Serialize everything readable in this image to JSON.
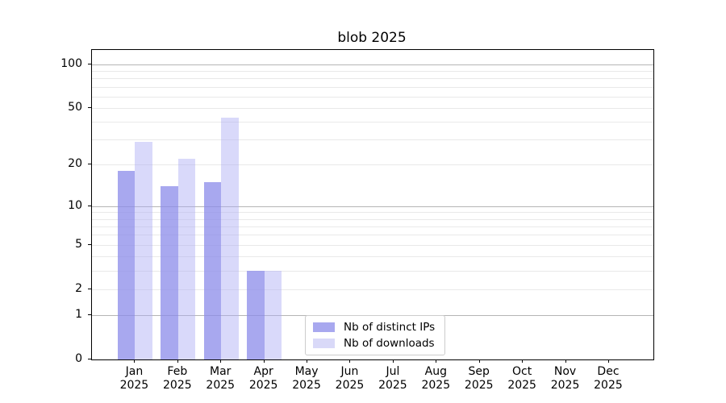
{
  "title": "blob 2025",
  "chart_data": {
    "type": "bar",
    "title": "blob 2025",
    "categories": [
      "Jan",
      "Feb",
      "Mar",
      "Apr",
      "May",
      "Jun",
      "Jul",
      "Aug",
      "Sep",
      "Oct",
      "Nov",
      "Dec"
    ],
    "x_year_label": "2025",
    "series": [
      {
        "name": "Nb of distinct IPs",
        "color": "rgba(139,139,233,0.75)",
        "swatch": "#a8a8ef",
        "values": [
          18,
          14,
          15,
          3,
          0,
          0,
          0,
          0,
          0,
          0,
          0,
          0
        ]
      },
      {
        "name": "Nb of downloads",
        "color": "rgba(171,171,244,0.45)",
        "swatch": "#d9d9f8",
        "values": [
          29,
          22,
          43,
          3,
          0,
          0,
          0,
          0,
          0,
          0,
          0,
          0
        ]
      }
    ],
    "yscale": "log1p",
    "ylim": [
      0,
      125
    ],
    "ytick_labels": [
      "0",
      "1",
      "2",
      "5",
      "10",
      "20",
      "50",
      "100"
    ],
    "ytick_values": [
      0,
      1,
      2,
      5,
      10,
      20,
      50,
      100
    ],
    "major_gridlines": [
      1,
      10,
      100
    ],
    "minor_gridlines": [
      2,
      3,
      4,
      5,
      6,
      7,
      8,
      9,
      20,
      30,
      40,
      50,
      60,
      70,
      80,
      90
    ],
    "grid": true,
    "legend_position": "lower center"
  },
  "colors": {
    "background": "#ffffff",
    "axis": "#000000",
    "major_grid": "#b5b5b5",
    "minor_grid": "#e9e9e9",
    "text": "#000000",
    "legend_border": "#cccccc"
  }
}
